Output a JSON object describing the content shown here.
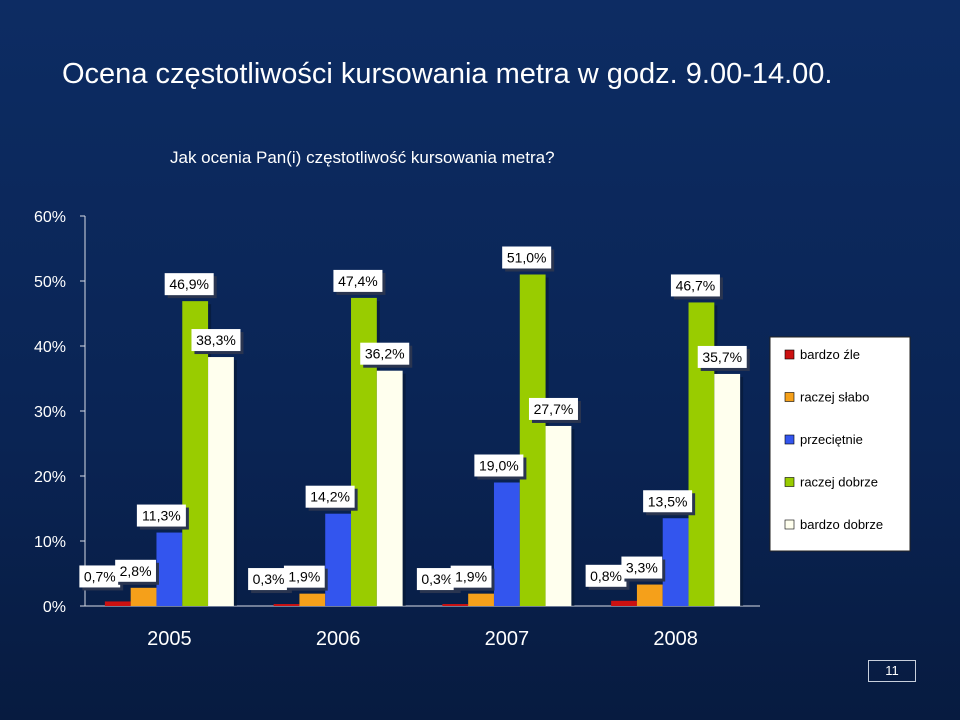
{
  "slide": {
    "title": "Ocena częstotliwości kursowania metra w godz. 9.00-14.00.",
    "page_number": "11"
  },
  "colors": {
    "background": "#0a2454",
    "bardzo_zle": "#cc1111",
    "raczej_slabo": "#f5a01a",
    "przecietnie": "#3355ee",
    "raczej_dobrze": "#99cc00",
    "bardzo_dobrze": "#ffffee"
  },
  "chart_data": {
    "type": "bar",
    "title": "Jak ocenia Pan(i) częstotliwość kursowania metra?",
    "categories": [
      "2005",
      "2006",
      "2007",
      "2008"
    ],
    "ylim": [
      0,
      60
    ],
    "y_ticks": [
      "0%",
      "10%",
      "20%",
      "30%",
      "40%",
      "50%",
      "60%"
    ],
    "grid": false,
    "legend_position": "right",
    "series": [
      {
        "name": "bardzo źle",
        "values": [
          0.7,
          0.3,
          0.3,
          0.8
        ],
        "labels": [
          "0,7%",
          "0,3%",
          "0,3%",
          "0,8%"
        ]
      },
      {
        "name": "raczej słabo",
        "values": [
          2.8,
          1.9,
          1.9,
          3.3
        ],
        "labels": [
          "2,8%",
          "1,9%",
          "1,9%",
          "3,3%"
        ]
      },
      {
        "name": "przeciętnie",
        "values": [
          11.3,
          14.2,
          19.0,
          13.5
        ],
        "labels": [
          "11,3%",
          "14,2%",
          "19,0%",
          "13,5%"
        ]
      },
      {
        "name": "raczej dobrze",
        "values": [
          46.9,
          47.4,
          51.0,
          46.7
        ],
        "labels": [
          "46,9%",
          "47,4%",
          "51,0%",
          "46,7%"
        ]
      },
      {
        "name": "bardzo dobrze",
        "values": [
          38.3,
          36.2,
          27.7,
          35.7
        ],
        "labels": [
          "38,3%",
          "36,2%",
          "27,7%",
          "35,7%"
        ]
      }
    ]
  }
}
